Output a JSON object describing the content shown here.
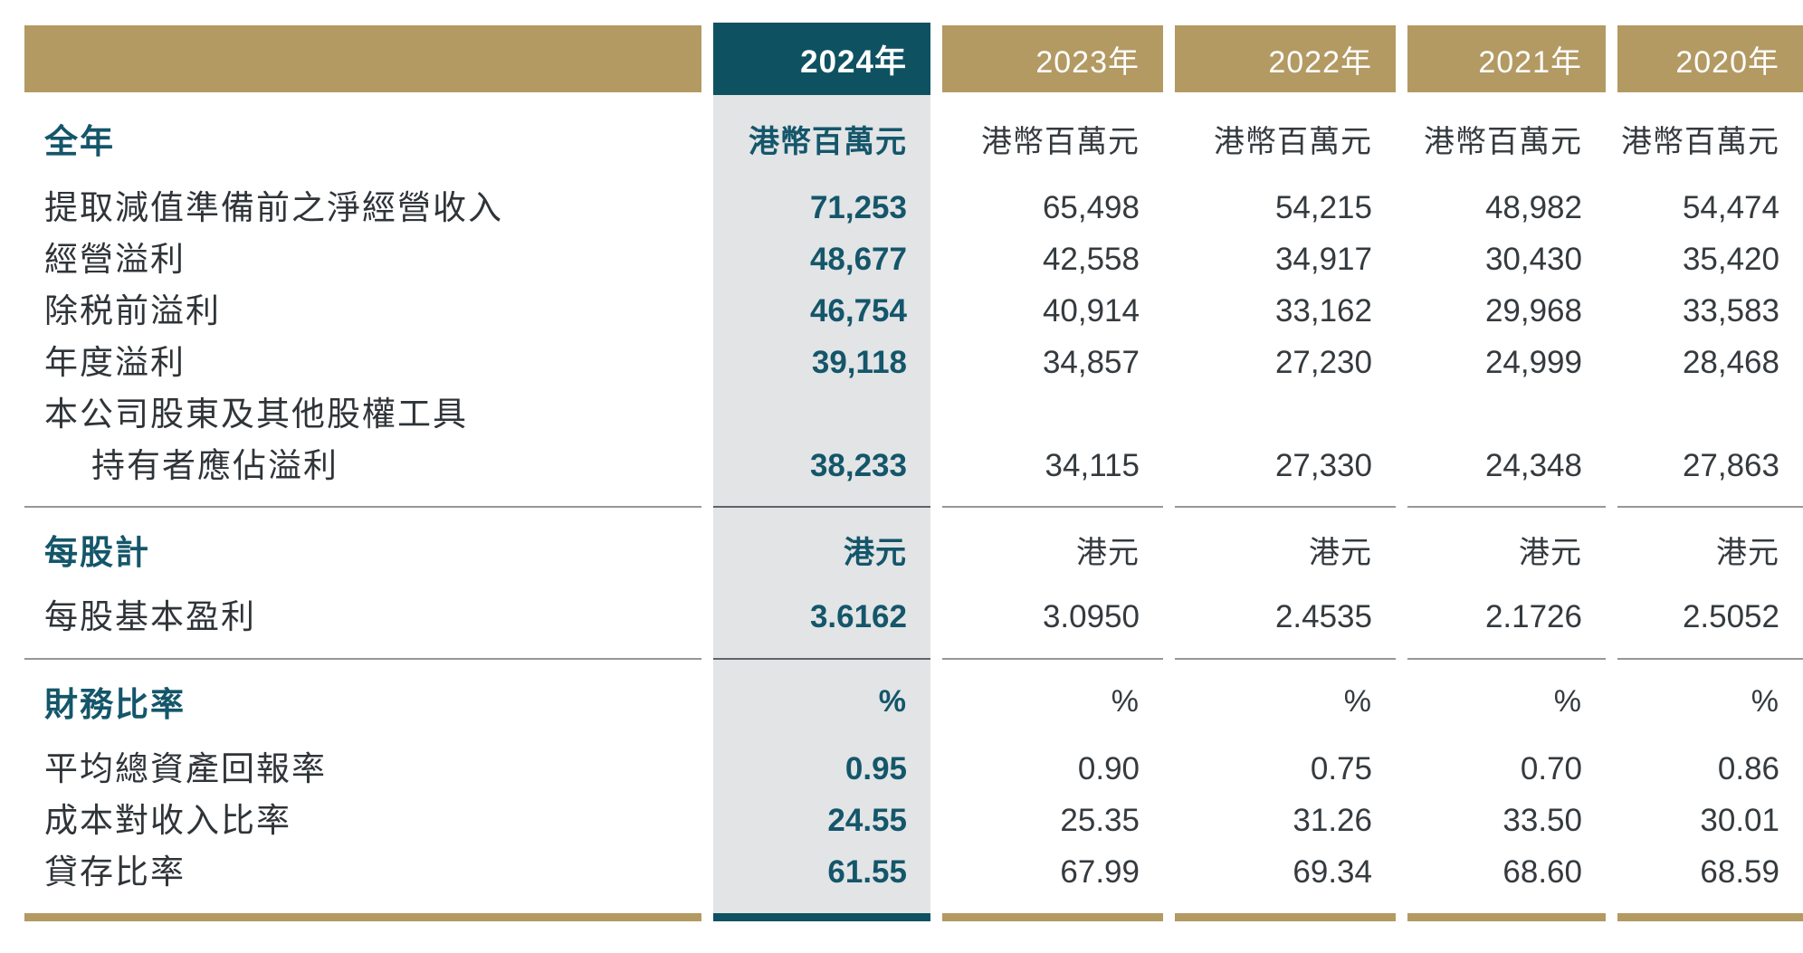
{
  "colors": {
    "gold": "#B39A63",
    "teal": "#0E5262",
    "teal_text": "#14566A",
    "highlight_bg": "#E2E4E6"
  },
  "table": {
    "columns": [
      {
        "year": "2024年",
        "highlight": true
      },
      {
        "year": "2023年",
        "highlight": false
      },
      {
        "year": "2022年",
        "highlight": false
      },
      {
        "year": "2021年",
        "highlight": false
      },
      {
        "year": "2020年",
        "highlight": false
      }
    ],
    "sections": [
      {
        "title": "全年",
        "unit": "港幣百萬元",
        "rows": [
          {
            "label": "提取減值準備前之淨經營收入",
            "values": [
              "71,253",
              "65,498",
              "54,215",
              "48,982",
              "54,474"
            ]
          },
          {
            "label": "經營溢利",
            "values": [
              "48,677",
              "42,558",
              "34,917",
              "30,430",
              "35,420"
            ]
          },
          {
            "label": "除税前溢利",
            "values": [
              "46,754",
              "40,914",
              "33,162",
              "29,968",
              "33,583"
            ]
          },
          {
            "label": "年度溢利",
            "values": [
              "39,118",
              "34,857",
              "27,230",
              "24,999",
              "28,468"
            ]
          },
          {
            "label_line1": "本公司股東及其他股權工具",
            "label_line2": "持有者應佔溢利",
            "values": [
              "38,233",
              "34,115",
              "27,330",
              "24,348",
              "27,863"
            ]
          }
        ]
      },
      {
        "title": "每股計",
        "unit": "港元",
        "rows": [
          {
            "label": "每股基本盈利",
            "values": [
              "3.6162",
              "3.0950",
              "2.4535",
              "2.1726",
              "2.5052"
            ]
          }
        ]
      },
      {
        "title": "財務比率",
        "unit": "%",
        "rows": [
          {
            "label": "平均總資產回報率",
            "values": [
              "0.95",
              "0.90",
              "0.75",
              "0.70",
              "0.86"
            ]
          },
          {
            "label": "成本對收入比率",
            "values": [
              "24.55",
              "25.35",
              "31.26",
              "33.50",
              "30.01"
            ]
          },
          {
            "label": "貸存比率",
            "values": [
              "61.55",
              "67.99",
              "69.34",
              "68.60",
              "68.59"
            ]
          }
        ]
      }
    ]
  }
}
